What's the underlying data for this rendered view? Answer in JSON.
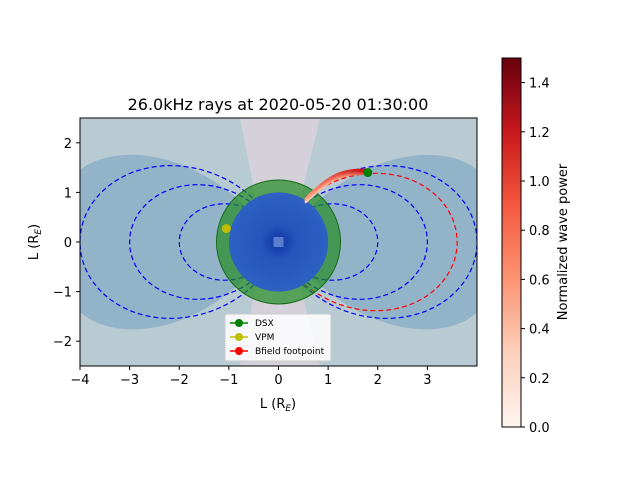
{
  "chart_data": {
    "type": "scatter",
    "title": "26.0kHz rays at 2020-05-20 01:30:00",
    "xlabel": {
      "main": "L (R",
      "sub": "E",
      "close": ")"
    },
    "ylabel": {
      "main": "L (R",
      "sub": "E",
      "close": ")"
    },
    "xlim": [
      -4,
      4
    ],
    "ylim": [
      -2.5,
      2.5
    ],
    "xticks": [
      -4,
      -3,
      -2,
      -1,
      0,
      1,
      2,
      3
    ],
    "xtick_labels": [
      "−4",
      "−3",
      "−2",
      "−1",
      "0",
      "1",
      "2",
      "3"
    ],
    "yticks": [
      2,
      1,
      0,
      -1,
      -2
    ],
    "ytick_labels": [
      "2",
      "1",
      "0",
      "−1",
      "−2"
    ],
    "colorbar": {
      "label": "Normalized wave power",
      "range": [
        0.0,
        1.5
      ],
      "ticks": [
        0.0,
        0.2,
        0.4,
        0.6,
        0.8,
        1.0,
        1.2,
        1.4
      ],
      "tick_labels": [
        "0.0",
        "0.2",
        "0.4",
        "0.6",
        "0.8",
        "1.0",
        "1.2",
        "1.4"
      ],
      "colormap": "Reds"
    },
    "earth": {
      "radius": 1.0,
      "color": "#2a52be"
    },
    "plasmasphere_ring": {
      "radius": 1.25,
      "color": "#228b22"
    },
    "field_line_L_values": [
      2,
      3,
      4
    ],
    "bfield_line_L": 3.6,
    "points": {
      "DSX": {
        "x": 1.8,
        "y": 1.4,
        "color": "#008000"
      },
      "VPM": {
        "x": -1.05,
        "y": 0.27,
        "color": "#bfbf00"
      }
    },
    "rays": {
      "start": [
        0.55,
        0.85
      ],
      "end": [
        1.75,
        1.42
      ]
    },
    "legend": [
      {
        "label": "DSX",
        "color": "#008000"
      },
      {
        "label": "VPM",
        "color": "#bfbf00"
      },
      {
        "label": "Bfield footpoint",
        "color": "#ff0000"
      }
    ]
  }
}
